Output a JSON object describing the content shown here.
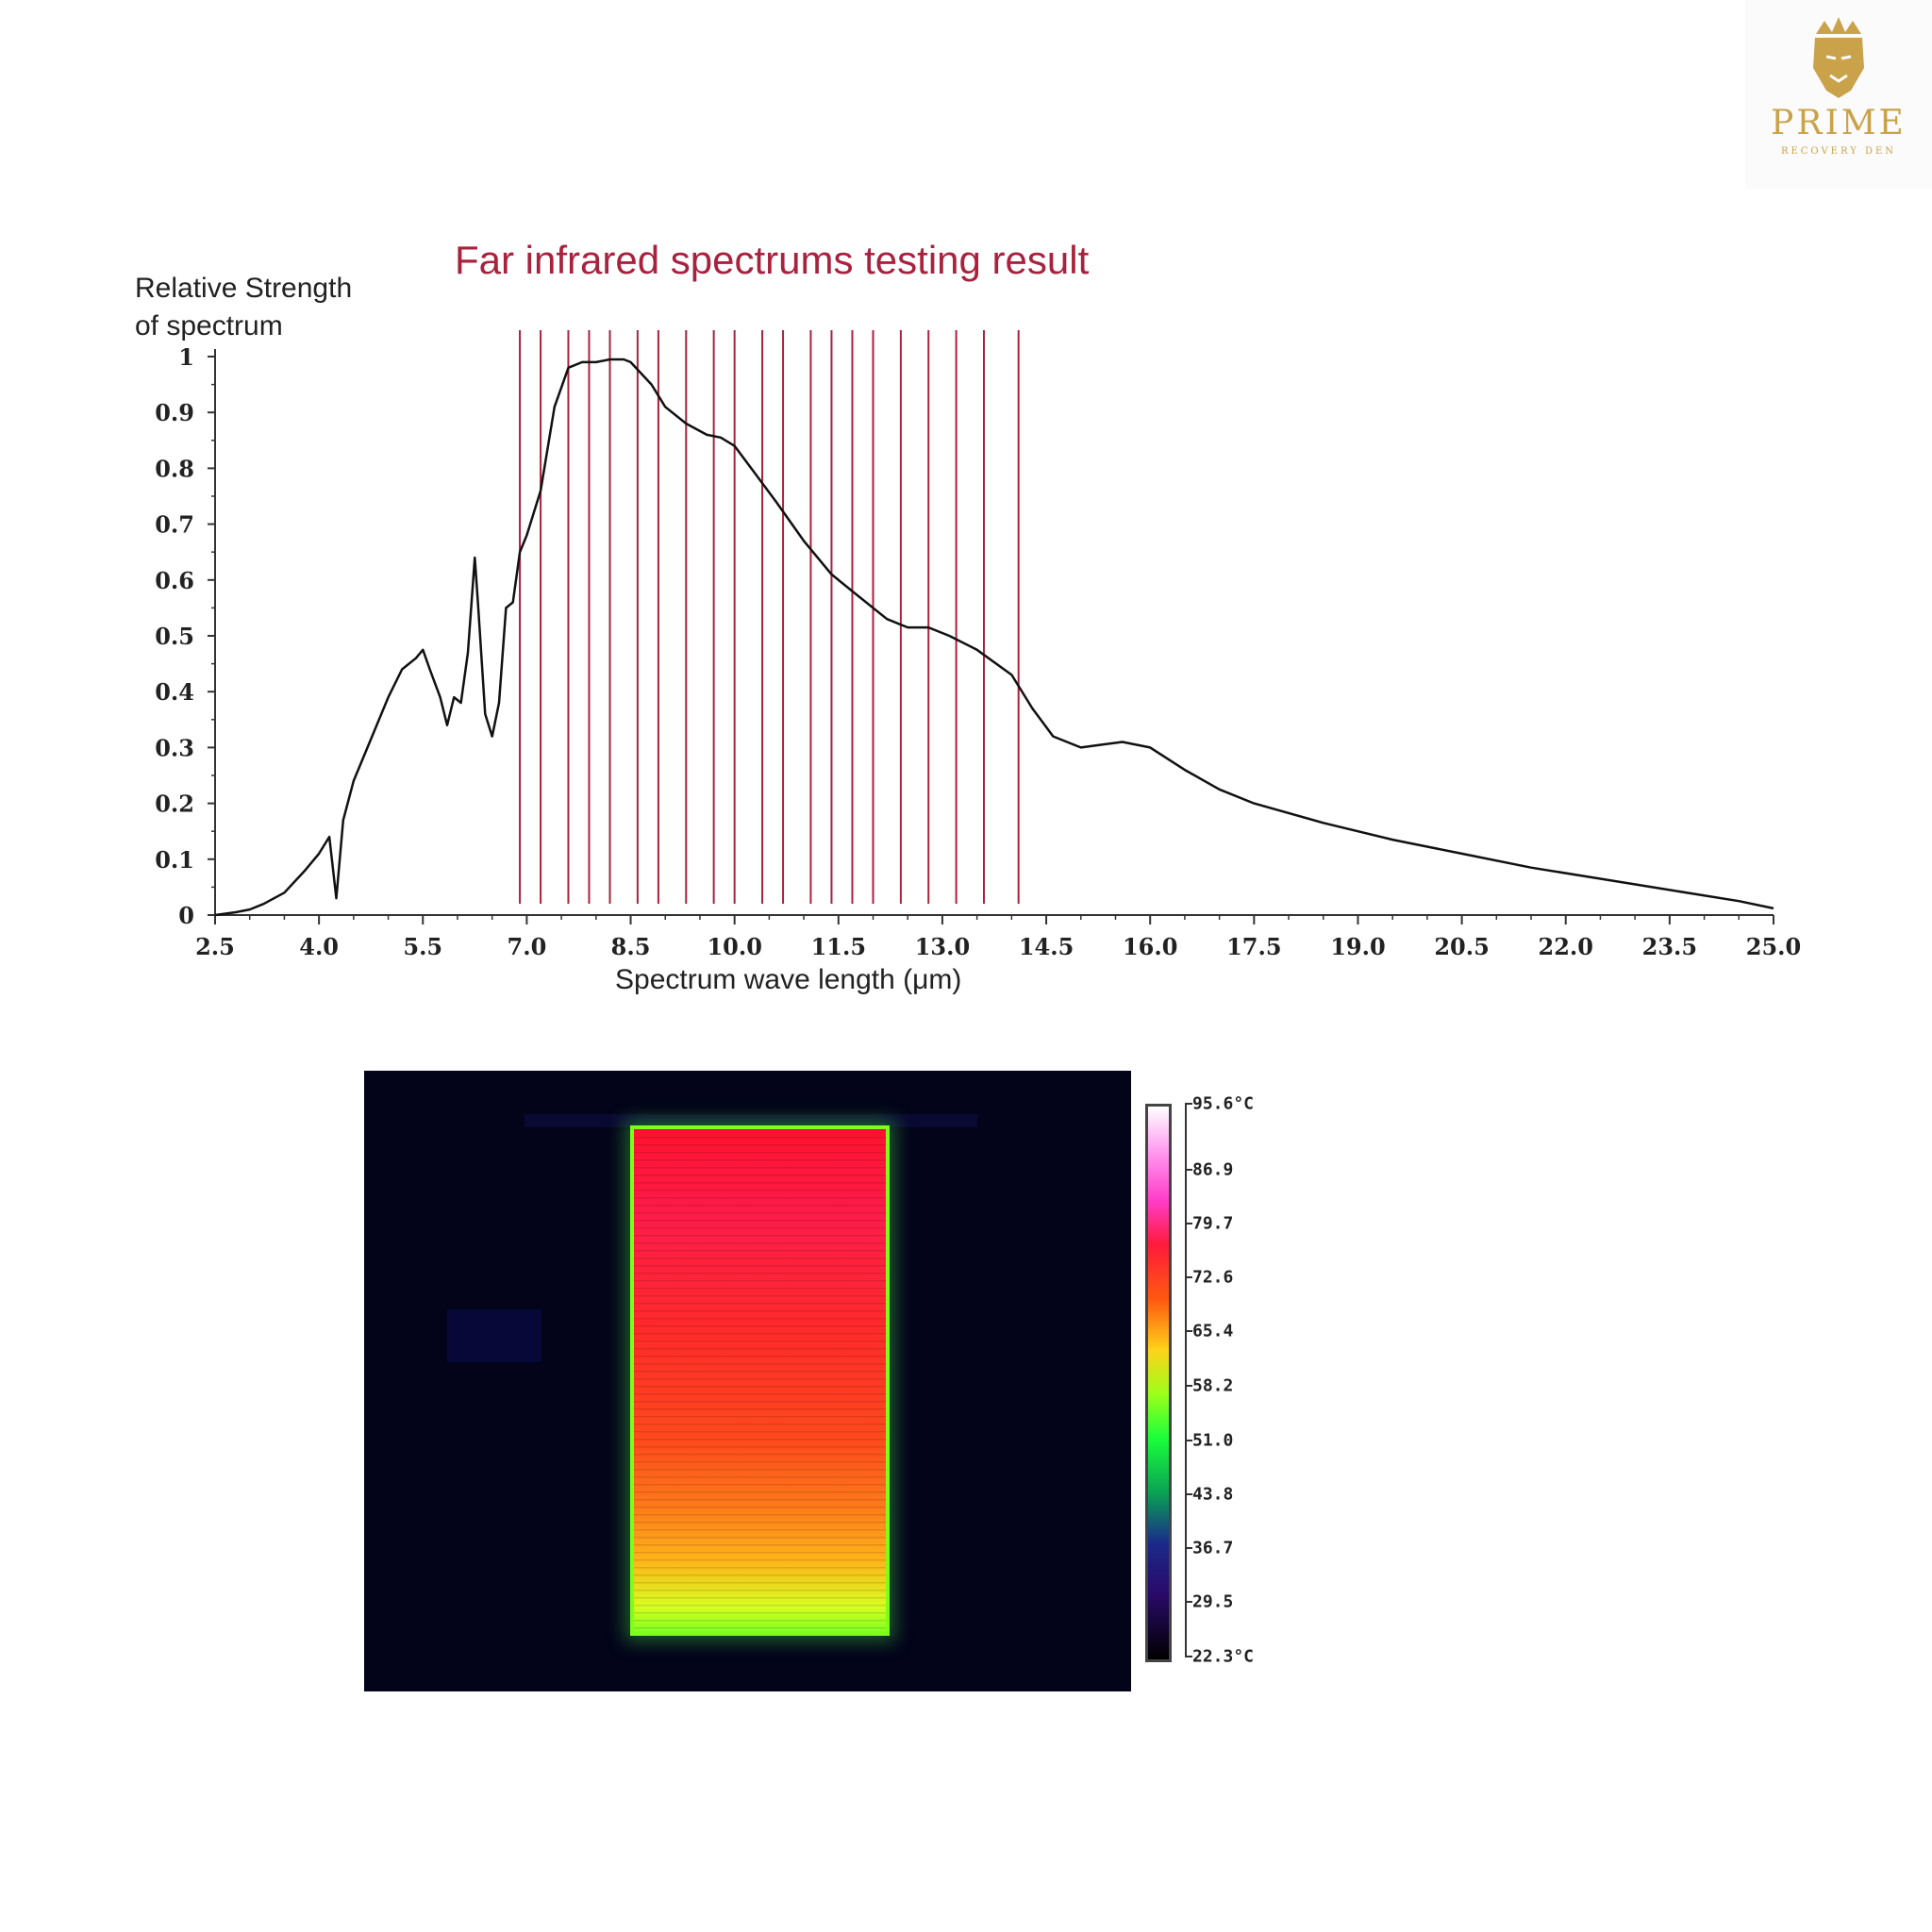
{
  "logo": {
    "word": "PRIME",
    "sub": "RECOVERY DEN",
    "color": "#c9a24a",
    "icon": "crowned-lion-icon"
  },
  "chart_data": [
    {
      "type": "line",
      "title": "Far infrared spectrums testing result",
      "ylabel_lines": [
        "Relative Strength",
        "of spectrum"
      ],
      "xlabel": "Spectrum wave length (μm)",
      "xlim": [
        2.5,
        25.0
      ],
      "ylim": [
        0,
        1
      ],
      "x_ticks": [
        "2.5",
        "4.0",
        "5.5",
        "7.0",
        "8.5",
        "10.0",
        "11.5",
        "13.0",
        "14.5",
        "16.0",
        "17.5",
        "19.0",
        "20.5",
        "22.0",
        "23.5",
        "25.0"
      ],
      "y_ticks": [
        "0",
        "0.1",
        "0.2",
        "0.3",
        "0.4",
        "0.5",
        "0.6",
        "0.7",
        "0.8",
        "0.9",
        "1"
      ],
      "line_color": "#111111",
      "marker_color": "#a8223e",
      "vertical_markers": [
        6.9,
        7.2,
        7.6,
        7.9,
        8.2,
        8.6,
        8.9,
        9.3,
        9.7,
        10.0,
        10.4,
        10.7,
        11.1,
        11.4,
        11.7,
        12.0,
        12.4,
        12.8,
        13.2,
        13.6,
        14.1
      ],
      "series": [
        {
          "x": [
            2.5,
            2.8,
            3.0,
            3.2,
            3.5,
            3.8,
            4.0,
            4.15,
            4.25,
            4.35,
            4.5,
            4.8,
            5.0,
            5.2,
            5.4,
            5.5,
            5.6,
            5.75,
            5.85,
            5.95,
            6.05,
            6.15,
            6.25,
            6.3,
            6.4,
            6.5,
            6.6,
            6.7,
            6.8,
            6.9,
            7.0,
            7.2,
            7.4,
            7.6,
            7.8,
            8.0,
            8.2,
            8.4,
            8.5,
            8.8,
            9.0,
            9.3,
            9.6,
            9.8,
            10.0,
            10.3,
            10.6,
            11.0,
            11.4,
            11.8,
            12.2,
            12.5,
            12.8,
            13.1,
            13.5,
            14.0,
            14.3,
            14.6,
            15.0,
            15.3,
            15.6,
            16.0,
            16.5,
            17.0,
            17.5,
            18.5,
            19.5,
            20.5,
            21.5,
            22.5,
            23.5,
            24.5,
            25.0
          ],
          "y": [
            0.0,
            0.005,
            0.01,
            0.02,
            0.04,
            0.08,
            0.11,
            0.14,
            0.03,
            0.17,
            0.24,
            0.33,
            0.39,
            0.44,
            0.46,
            0.475,
            0.44,
            0.39,
            0.34,
            0.39,
            0.38,
            0.47,
            0.64,
            0.55,
            0.36,
            0.32,
            0.38,
            0.55,
            0.56,
            0.65,
            0.68,
            0.76,
            0.91,
            0.98,
            0.99,
            0.99,
            0.995,
            0.995,
            0.99,
            0.95,
            0.91,
            0.88,
            0.86,
            0.855,
            0.84,
            0.79,
            0.74,
            0.67,
            0.61,
            0.57,
            0.53,
            0.515,
            0.515,
            0.5,
            0.475,
            0.43,
            0.37,
            0.32,
            0.3,
            0.305,
            0.31,
            0.3,
            0.26,
            0.225,
            0.2,
            0.165,
            0.135,
            0.11,
            0.085,
            0.065,
            0.045,
            0.025,
            0.012
          ]
        }
      ]
    },
    {
      "type": "heatmap",
      "colorbar_ticks": [
        "95.6°C",
        "86.9",
        "79.7",
        "72.6",
        "65.4",
        "58.2",
        "51.0",
        "43.8",
        "36.7",
        "29.5",
        "22.3°C"
      ],
      "colorbar_values": [
        95.6,
        86.9,
        79.7,
        72.6,
        65.4,
        58.2,
        51.0,
        43.8,
        36.7,
        29.5,
        22.3
      ],
      "range": [
        22.3,
        95.6
      ],
      "hot_color": "#ff1a3a",
      "edge_color": "#7dff1a",
      "background_color": "#03031a"
    }
  ]
}
